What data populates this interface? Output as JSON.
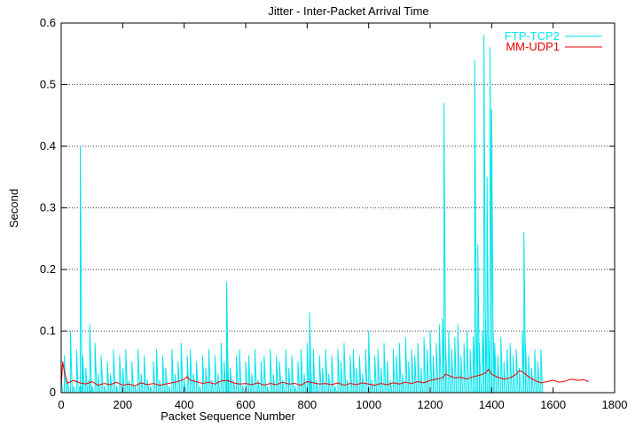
{
  "chart_data": {
    "type": "line",
    "title": "Jitter - Inter-Packet Arrival Time",
    "xlabel": "Packet Sequence Number",
    "ylabel": "Second",
    "xlim": [
      0,
      1800
    ],
    "ylim": [
      0,
      0.6
    ],
    "x_ticks": [
      0,
      200,
      400,
      600,
      800,
      1000,
      1200,
      1400,
      1600,
      1800
    ],
    "y_ticks": [
      0,
      0.1,
      0.2,
      0.3,
      0.4,
      0.5,
      0.6
    ],
    "x_tick_labels": [
      "0",
      "200",
      "400",
      "600",
      "800",
      "1000",
      "1200",
      "1400",
      "1600",
      "1800"
    ],
    "y_tick_labels": [
      "0",
      "0.1",
      "0.2",
      "0.3",
      "0.4",
      "0.5",
      "0.6"
    ],
    "grid": "horizontal-dotted",
    "legend_position": "top-right",
    "series": [
      {
        "name": "FTP-TCP2",
        "color": "#00e5ee",
        "x": [
          0,
          10,
          20,
          30,
          40,
          50,
          60,
          62,
          64,
          70,
          80,
          90,
          93,
          100,
          110,
          120,
          130,
          140,
          150,
          160,
          170,
          180,
          190,
          200,
          210,
          220,
          230,
          240,
          250,
          260,
          270,
          280,
          290,
          300,
          310,
          320,
          330,
          340,
          350,
          360,
          370,
          380,
          390,
          400,
          410,
          420,
          430,
          440,
          450,
          460,
          470,
          480,
          490,
          500,
          510,
          520,
          530,
          538,
          540,
          550,
          560,
          570,
          580,
          590,
          600,
          610,
          620,
          630,
          640,
          650,
          660,
          670,
          680,
          690,
          700,
          710,
          720,
          730,
          740,
          750,
          760,
          770,
          780,
          790,
          800,
          808,
          810,
          820,
          830,
          840,
          850,
          860,
          870,
          880,
          890,
          900,
          910,
          920,
          930,
          940,
          950,
          960,
          970,
          980,
          990,
          1000,
          1010,
          1020,
          1030,
          1040,
          1050,
          1060,
          1070,
          1080,
          1090,
          1100,
          1110,
          1120,
          1130,
          1140,
          1150,
          1160,
          1170,
          1180,
          1190,
          1200,
          1210,
          1220,
          1230,
          1240,
          1245,
          1250,
          1260,
          1270,
          1280,
          1290,
          1300,
          1310,
          1320,
          1330,
          1340,
          1345,
          1350,
          1355,
          1360,
          1370,
          1375,
          1380,
          1385,
          1390,
          1395,
          1400,
          1405,
          1410,
          1420,
          1430,
          1440,
          1450,
          1460,
          1470,
          1480,
          1490,
          1500,
          1505,
          1510,
          1520,
          1530,
          1540,
          1550,
          1560
        ],
        "values": [
          0.02,
          0.06,
          0.02,
          0.1,
          0.01,
          0.07,
          0.01,
          0.4,
          0.01,
          0.06,
          0.04,
          0.02,
          0.11,
          0.01,
          0.08,
          0.03,
          0.06,
          0.01,
          0.05,
          0.03,
          0.07,
          0.01,
          0.06,
          0.04,
          0.07,
          0.02,
          0.05,
          0.01,
          0.07,
          0.03,
          0.06,
          0.02,
          0.01,
          0.05,
          0.07,
          0.02,
          0.06,
          0.04,
          0.01,
          0.07,
          0.03,
          0.05,
          0.08,
          0.02,
          0.06,
          0.07,
          0.03,
          0.05,
          0.01,
          0.06,
          0.04,
          0.07,
          0.02,
          0.06,
          0.03,
          0.08,
          0.05,
          0.18,
          0.07,
          0.04,
          0.02,
          0.06,
          0.07,
          0.01,
          0.05,
          0.06,
          0.03,
          0.07,
          0.02,
          0.05,
          0.06,
          0.01,
          0.07,
          0.03,
          0.06,
          0.05,
          0.02,
          0.07,
          0.04,
          0.06,
          0.01,
          0.05,
          0.07,
          0.03,
          0.08,
          0.13,
          0.06,
          0.07,
          0.02,
          0.06,
          0.04,
          0.07,
          0.03,
          0.06,
          0.01,
          0.07,
          0.05,
          0.08,
          0.02,
          0.06,
          0.07,
          0.04,
          0.06,
          0.03,
          0.07,
          0.1,
          0.02,
          0.06,
          0.07,
          0.04,
          0.08,
          0.05,
          0.02,
          0.07,
          0.06,
          0.08,
          0.03,
          0.09,
          0.05,
          0.07,
          0.06,
          0.08,
          0.04,
          0.09,
          0.07,
          0.1,
          0.06,
          0.08,
          0.11,
          0.12,
          0.47,
          0.08,
          0.1,
          0.07,
          0.09,
          0.11,
          0.06,
          0.08,
          0.1,
          0.07,
          0.09,
          0.54,
          0.11,
          0.24,
          0.08,
          0.1,
          0.58,
          0.12,
          0.35,
          0.09,
          0.56,
          0.46,
          0.1,
          0.08,
          0.06,
          0.09,
          0.05,
          0.07,
          0.08,
          0.06,
          0.07,
          0.04,
          0.1,
          0.26,
          0.08,
          0.06,
          0.04,
          0.07,
          0.05,
          0.07
        ]
      },
      {
        "name": "MM-UDP1",
        "color": "#ee0000",
        "x": [
          0,
          5,
          10,
          20,
          40,
          60,
          80,
          100,
          120,
          140,
          160,
          180,
          200,
          220,
          240,
          260,
          280,
          300,
          320,
          340,
          360,
          380,
          400,
          410,
          420,
          440,
          460,
          480,
          500,
          520,
          540,
          560,
          580,
          600,
          620,
          640,
          660,
          680,
          700,
          720,
          740,
          760,
          780,
          800,
          820,
          840,
          860,
          880,
          900,
          920,
          940,
          960,
          980,
          1000,
          1020,
          1040,
          1060,
          1080,
          1100,
          1120,
          1140,
          1160,
          1180,
          1200,
          1220,
          1240,
          1250,
          1260,
          1280,
          1300,
          1320,
          1340,
          1360,
          1380,
          1390,
          1400,
          1420,
          1440,
          1460,
          1480,
          1490,
          1500,
          1520,
          1540,
          1560,
          1580,
          1600,
          1620,
          1640,
          1660,
          1680,
          1700,
          1715
        ],
        "values": [
          0.01,
          0.05,
          0.035,
          0.015,
          0.02,
          0.016,
          0.014,
          0.018,
          0.012,
          0.015,
          0.013,
          0.017,
          0.012,
          0.014,
          0.011,
          0.016,
          0.013,
          0.015,
          0.012,
          0.014,
          0.016,
          0.018,
          0.022,
          0.026,
          0.02,
          0.018,
          0.015,
          0.017,
          0.014,
          0.019,
          0.02,
          0.016,
          0.014,
          0.015,
          0.013,
          0.016,
          0.012,
          0.015,
          0.013,
          0.017,
          0.014,
          0.015,
          0.012,
          0.018,
          0.016,
          0.014,
          0.015,
          0.013,
          0.016,
          0.012,
          0.015,
          0.013,
          0.016,
          0.014,
          0.012,
          0.015,
          0.013,
          0.016,
          0.014,
          0.017,
          0.015,
          0.018,
          0.016,
          0.02,
          0.022,
          0.024,
          0.03,
          0.028,
          0.024,
          0.025,
          0.022,
          0.026,
          0.028,
          0.032,
          0.038,
          0.03,
          0.025,
          0.022,
          0.024,
          0.03,
          0.036,
          0.034,
          0.026,
          0.02,
          0.016,
          0.018,
          0.02,
          0.017,
          0.019,
          0.022,
          0.02,
          0.021,
          0.018
        ]
      }
    ]
  }
}
